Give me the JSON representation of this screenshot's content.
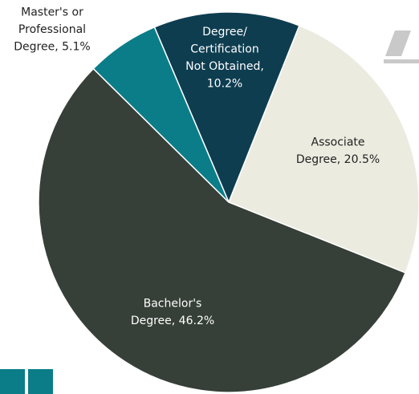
{
  "chart_data": {
    "type": "pie",
    "labels": [
      [
        "Degree/",
        "Certification",
        "Not Obtained,",
        "10.2%"
      ],
      [
        "Associate",
        "Degree, 20.5%"
      ],
      [
        "Bachelor's",
        "Degree, 46.2%"
      ],
      [
        "Master's or",
        "Professional",
        "Degree, 5.1%"
      ]
    ],
    "values": [
      10.2,
      20.5,
      46.2,
      5.1
    ],
    "colors": [
      "#0e3d50",
      "#ecebe0",
      "#363f38",
      "#0a7d88"
    ],
    "label_colors": [
      "#ffffff",
      "#222222",
      "#ffffff",
      "#222222"
    ]
  }
}
